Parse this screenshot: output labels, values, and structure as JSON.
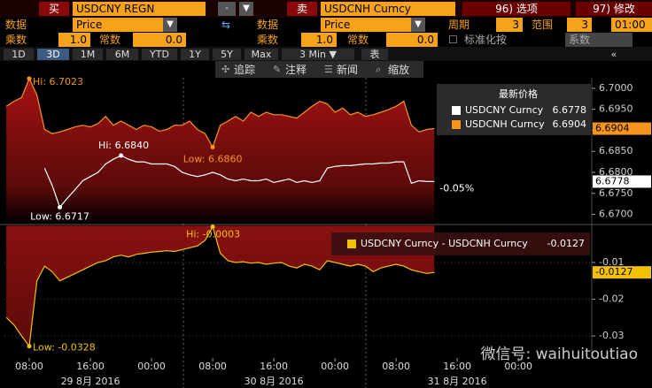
{
  "toolbar": {
    "buy_label": "买",
    "buy_ticker": "USDCNY REGN",
    "sell_label": "卖",
    "sell_ticker": "USDCNH Curncy",
    "options": "96) 选项",
    "modify": "97) 修改",
    "data_label_1": "数据",
    "data_value_1": "Price",
    "data_label_2": "数据",
    "data_value_2": "Price",
    "period_label": "周期",
    "period_value": "3",
    "range_label": "范围",
    "range_value": "3",
    "time_value": "01:00",
    "mult_label_1": "乘数",
    "mult_value_1": "1.0",
    "const_label_1": "常数",
    "const_value_1": "0.0",
    "mult_label_2": "乘数",
    "mult_value_2": "1.0",
    "const_label_2": "常数",
    "const_value_2": "0.0",
    "normalize_label": "标准化按",
    "normalize_value": "系数",
    "ranges": [
      "1D",
      "3D",
      "1M",
      "6M",
      "YTD",
      "1Y",
      "5Y",
      "Max",
      "3 Min ▼",
      "表"
    ],
    "tools": [
      "追踪",
      "注释",
      "新闻",
      "缩放"
    ]
  },
  "watermark": "微信号: waihuitoutiao",
  "chart_data": [
    {
      "type": "line",
      "legend_title": "最新价格",
      "change_label": "-0.05%",
      "x": [
        5,
        6,
        7,
        8,
        9,
        10,
        11,
        12,
        13,
        14,
        15,
        16,
        17,
        18,
        19,
        20,
        21,
        22,
        23,
        24,
        25,
        26,
        27,
        28,
        29,
        30,
        31,
        32,
        33,
        34,
        35,
        36,
        37,
        38,
        39,
        40,
        41,
        42,
        43,
        44,
        45,
        46,
        47,
        48,
        49,
        50,
        51,
        52,
        53,
        54,
        55,
        56,
        57,
        58,
        59,
        60,
        61
      ],
      "xlim": [
        4.75,
        81.6
      ],
      "ylim": [
        6.6678,
        6.7025
      ],
      "yticks": [
        {
          "value": 6.67,
          "label": "6.6700"
        },
        {
          "value": 6.675,
          "label": "6.6750"
        },
        {
          "value": 6.68,
          "label": "6.6800"
        },
        {
          "value": 6.685,
          "label": "6.6850"
        },
        {
          "value": 6.69,
          "label": "6.6900"
        },
        {
          "value": 6.695,
          "label": "6.6950"
        },
        {
          "value": 6.7,
          "label": "6.7000"
        }
      ],
      "series": [
        {
          "name": "USDCNH Curncy",
          "color": "#f7941d",
          "area": true,
          "last_label": "6.6904",
          "annotations": {
            "hi": "Hi: 6.7023",
            "low": "Low: 6.6860"
          },
          "values": [
            6.6957,
            6.6969,
            6.6978,
            6.7023,
            6.6984,
            6.6902,
            6.6892,
            6.6896,
            6.6902,
            6.6908,
            6.6912,
            6.6908,
            6.6916,
            6.6933,
            6.6912,
            6.6922,
            6.6912,
            6.6902,
            6.6912,
            6.6908,
            6.6898,
            6.6902,
            6.6912,
            6.6912,
            6.6922,
            6.6902,
            6.6892,
            6.686,
            6.6912,
            6.6922,
            6.6933,
            6.6922,
            6.6943,
            6.6933,
            6.6943,
            6.6937,
            6.6937,
            6.6933,
            6.6929,
            6.6943,
            6.6957,
            6.6969,
            6.6963,
            6.6943,
            6.6953,
            6.6937,
            6.6943,
            6.6933,
            6.6937,
            6.6943,
            6.6949,
            6.6957,
            6.6969,
            6.6912,
            6.6896,
            6.6902,
            6.6904
          ]
        },
        {
          "name": "USDCNY Curncy",
          "color": "#ffffff",
          "area": false,
          "last_label": "6.6778",
          "annotations": {
            "hi": "Hi: 6.6840",
            "low": "Low: 6.6717"
          },
          "values": [
            null,
            null,
            null,
            null,
            null,
            6.681,
            6.6769,
            6.6717,
            6.6739,
            6.6759,
            6.678,
            6.679,
            6.68,
            6.682,
            6.6831,
            6.684,
            6.6831,
            6.6825,
            6.6825,
            6.682,
            6.682,
            6.682,
            6.6814,
            6.68,
            6.6794,
            6.679,
            6.6794,
            6.68,
            6.6794,
            6.6784,
            6.678,
            6.6784,
            6.678,
            6.678,
            6.6784,
            6.6776,
            6.678,
            6.6784,
            6.6776,
            6.678,
            6.6776,
            6.678,
            6.681,
            6.6814,
            6.6816,
            6.6816,
            6.6818,
            6.682,
            6.682,
            6.6822,
            6.6822,
            6.6825,
            6.6825,
            6.6774,
            6.678,
            6.6778,
            6.6778
          ]
        }
      ]
    },
    {
      "type": "line",
      "grid": true,
      "x": [
        5,
        6,
        7,
        8,
        9,
        10,
        11,
        12,
        13,
        14,
        15,
        16,
        17,
        18,
        19,
        20,
        21,
        22,
        23,
        24,
        25,
        26,
        27,
        28,
        29,
        30,
        31,
        32,
        33,
        34,
        35,
        36,
        37,
        38,
        39,
        40,
        41,
        42,
        43,
        44,
        45,
        46,
        47,
        48,
        49,
        50,
        51,
        52,
        53,
        54,
        55,
        56,
        57,
        58,
        59,
        60,
        61
      ],
      "xlim": [
        4.75,
        81.6
      ],
      "xticks": [
        {
          "value": 8,
          "label": "08:00"
        },
        {
          "value": 16,
          "label": "16:00"
        },
        {
          "value": 24,
          "label": "00:00"
        },
        {
          "value": 32,
          "label": "08:00"
        },
        {
          "value": 40,
          "label": "16:00"
        },
        {
          "value": 48,
          "label": "00:00"
        },
        {
          "value": 56,
          "label": "08:00"
        },
        {
          "value": 64,
          "label": "16:00"
        },
        {
          "value": 72,
          "label": "00:00"
        }
      ],
      "x_groups": [
        "29 8月 2016",
        "30 8月 2016",
        "31 8月 2016"
      ],
      "ylim": [
        -0.036,
        0.0001
      ],
      "yticks": [
        -0.03,
        -0.02,
        -0.01
      ],
      "series": [
        {
          "name": "USDCNY Curncy - USDCNH Curncy",
          "color": "#f2c200",
          "area": true,
          "last_label": "-0.0127",
          "annotations": {
            "hi": "Hi: -0.0003",
            "low": "Low: -0.0328"
          },
          "values": [
            -0.025,
            -0.027,
            -0.03,
            -0.0328,
            -0.015,
            -0.011,
            -0.0125,
            -0.015,
            -0.014,
            -0.013,
            -0.012,
            -0.011,
            -0.01,
            -0.0095,
            -0.0085,
            -0.008,
            -0.0085,
            -0.0078,
            -0.0075,
            -0.0072,
            -0.007,
            -0.0068,
            -0.007,
            -0.0065,
            -0.006,
            -0.0055,
            -0.004,
            -0.0003,
            -0.0075,
            -0.0095,
            -0.01,
            -0.0098,
            -0.0102,
            -0.01,
            -0.0105,
            -0.0102,
            -0.01,
            -0.011,
            -0.0115,
            -0.0105,
            -0.011,
            -0.012,
            -0.0095,
            -0.01,
            -0.0105,
            -0.011,
            -0.0105,
            -0.011,
            -0.0125,
            -0.0115,
            -0.011,
            -0.0105,
            -0.011,
            -0.012,
            -0.0125,
            -0.013,
            -0.0127
          ]
        }
      ]
    }
  ]
}
